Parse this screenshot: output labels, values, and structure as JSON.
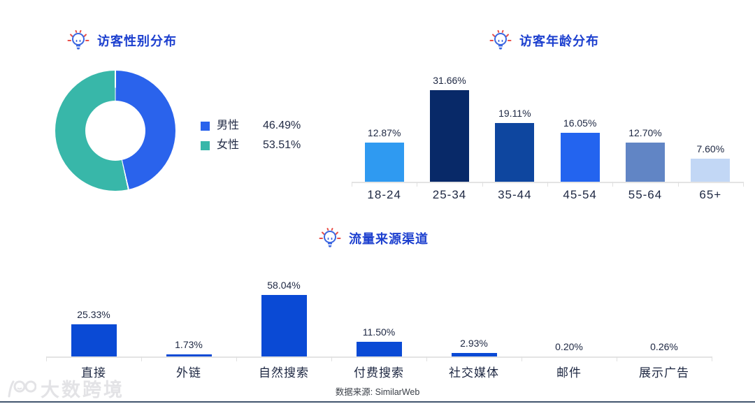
{
  "page": {
    "watermark_text": "大数跨境",
    "source_note": "数据来源: SimilarWeb"
  },
  "colors": {
    "title_blue": "#1d40cf",
    "footer_line": "#42556e"
  },
  "chart_data": [
    {
      "id": "gender",
      "type": "pie",
      "donut": true,
      "title": "访客性别分布",
      "labels": [
        "男性",
        "女性"
      ],
      "values": [
        46.49,
        53.51
      ],
      "value_labels": [
        "46.49%",
        "53.51%"
      ],
      "colors": [
        "#2a63ec",
        "#38b7a9"
      ],
      "legend_position": "right",
      "start_angle_deg": 0,
      "direction": "clockwise"
    },
    {
      "id": "age",
      "type": "bar",
      "title": "访客年龄分布",
      "categories": [
        "18-24",
        "25-34",
        "35-44",
        "45-54",
        "55-64",
        "65+"
      ],
      "values": [
        12.87,
        31.66,
        19.11,
        16.05,
        12.7,
        7.6
      ],
      "value_labels": [
        "12.87%",
        "31.66%",
        "19.11%",
        "16.05%",
        "12.70%",
        "7.60%"
      ],
      "bar_colors": [
        "#2f9af1",
        "#082968",
        "#0e469f",
        "#2364ef",
        "#6185c5",
        "#c2d7f5"
      ],
      "xlabel": "",
      "ylabel": "",
      "ylim": [
        0,
        35
      ],
      "grid": false,
      "value_labels_position": "above"
    },
    {
      "id": "traffic",
      "type": "bar",
      "title": "流量来源渠道",
      "categories": [
        "直接",
        "外链",
        "自然搜索",
        "付费搜索",
        "社交媒体",
        "邮件",
        "展示广告"
      ],
      "values": [
        25.33,
        1.73,
        58.04,
        11.5,
        2.93,
        0.2,
        0.26
      ],
      "value_labels": [
        "25.33%",
        "1.73%",
        "58.04%",
        "11.50%",
        "2.93%",
        "0.20%",
        "0.26%"
      ],
      "bar_color": "#0a4ad5",
      "xlabel": "",
      "ylabel": "",
      "ylim": [
        0,
        60
      ],
      "grid": false,
      "value_labels_position": "above"
    }
  ]
}
